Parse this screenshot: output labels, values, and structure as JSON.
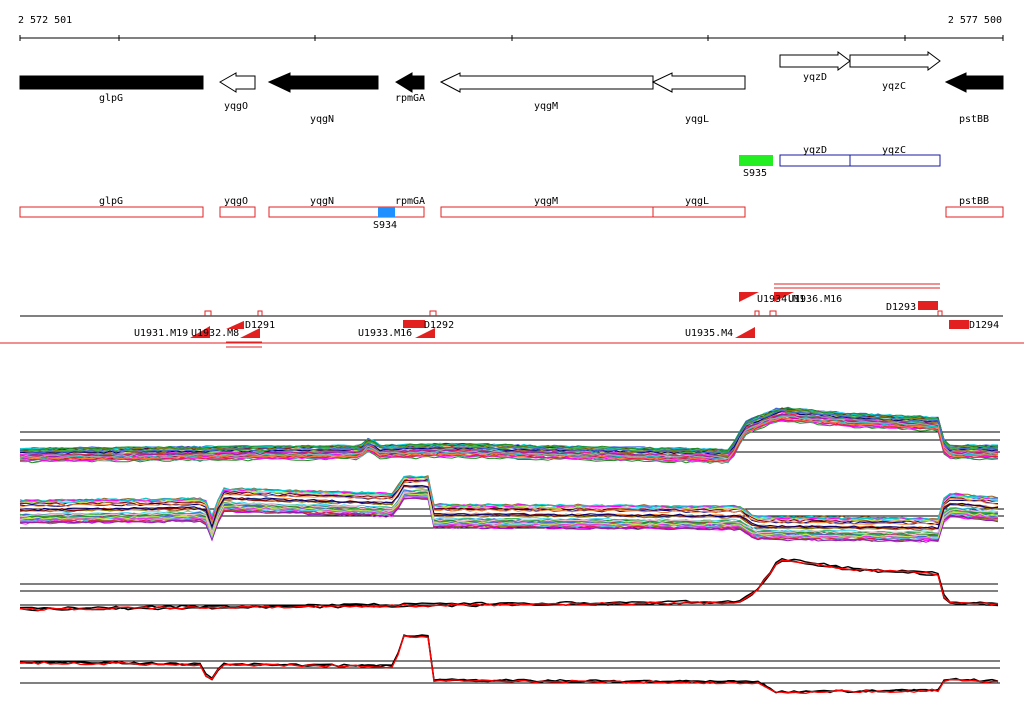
{
  "ruler": {
    "start_label": "2 572 501",
    "end_label": "2 577 500"
  },
  "genes": [
    {
      "name": "glpG",
      "strand": "-",
      "filled": true
    },
    {
      "name": "yqgO",
      "strand": "-",
      "filled": false
    },
    {
      "name": "yqgN",
      "strand": "-",
      "filled": true
    },
    {
      "name": "rpmGA",
      "strand": "-",
      "filled": true
    },
    {
      "name": "yqgM",
      "strand": "-",
      "filled": false
    },
    {
      "name": "yqgL",
      "strand": "-",
      "filled": false
    },
    {
      "name": "yqzD",
      "strand": "+",
      "filled": false
    },
    {
      "name": "yqzC",
      "strand": "+",
      "filled": false
    },
    {
      "name": "pstBB",
      "strand": "-",
      "filled": true
    }
  ],
  "sites": [
    {
      "label": "S935",
      "color": "#22ee22"
    },
    {
      "label": "S934",
      "color": "#1e90ff"
    }
  ],
  "operon_labels": [
    "yqzD",
    "yqzC"
  ],
  "transcript_labels": [
    "glpG",
    "yqgO",
    "yqgN",
    "rpmGA",
    "yqgM",
    "yqgL",
    "pstBB"
  ],
  "tiling_labels": [
    "U1931.M19",
    "U1932.M8",
    "D1291",
    "U1933.M16",
    "D1292",
    "U1934.M1",
    "U1935.M4",
    "U1936.M16",
    "D1293",
    "D1294"
  ],
  "colors": {
    "gene_fill": "#000000",
    "transcript_box": "#e32020",
    "operon_box": "#1a1aa0",
    "trace_red": "#ff0000",
    "trace_black": "#000000"
  },
  "track_count": 4
}
